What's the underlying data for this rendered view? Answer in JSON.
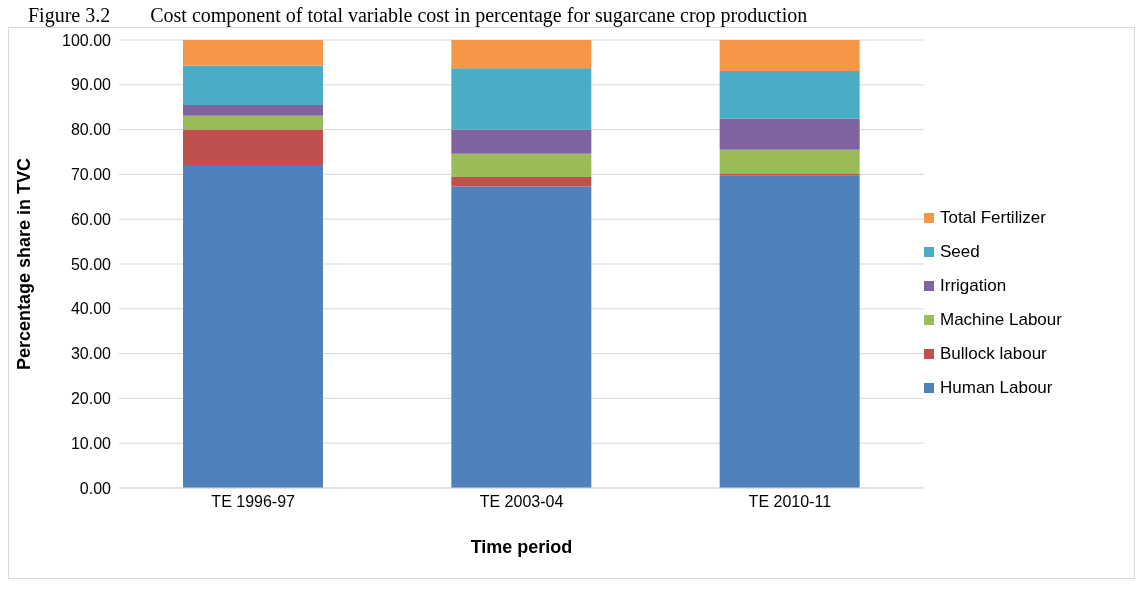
{
  "chart_data": {
    "type": "bar",
    "title": "Figure 3.2        Cost component of total variable cost in percentage for sugarcane crop production",
    "xlabel": "Time period",
    "ylabel": "Percentage share in TVC",
    "categories": [
      "TE 1996-97",
      "TE 2003-04",
      "TE 2010-11"
    ],
    "stacked": true,
    "series": [
      {
        "name": "Human Labour",
        "color": "#4f81bd",
        "values": [
          72.1,
          67.3,
          69.7
        ]
      },
      {
        "name": "Bullock labour",
        "color": "#c0504d",
        "values": [
          7.9,
          2.1,
          0.4
        ]
      },
      {
        "name": "Machine Labour",
        "color": "#9bbb59",
        "values": [
          3.1,
          5.2,
          5.4
        ]
      },
      {
        "name": "Irrigation",
        "color": "#8064a2",
        "values": [
          2.4,
          5.4,
          6.9
        ]
      },
      {
        "name": "Seed",
        "color": "#4bacc6",
        "values": [
          8.8,
          13.7,
          10.7
        ]
      },
      {
        "name": "Total Fertilizer",
        "color": "#f79646",
        "values": [
          5.7,
          6.3,
          6.9
        ]
      }
    ],
    "ylim": [
      0,
      100
    ],
    "yticks": [
      {
        "value": 0,
        "label": "0.00"
      },
      {
        "value": 10,
        "label": "10.00"
      },
      {
        "value": 20,
        "label": "20.00"
      },
      {
        "value": 30,
        "label": "30.00"
      },
      {
        "value": 40,
        "label": "40.00"
      },
      {
        "value": 50,
        "label": "50.00"
      },
      {
        "value": 60,
        "label": "60.00"
      },
      {
        "value": 70,
        "label": "70.00"
      },
      {
        "value": 80,
        "label": "80.00"
      },
      {
        "value": 90,
        "label": "90.00"
      },
      {
        "value": 100,
        "label": "100.00"
      }
    ],
    "grid": "y",
    "legend": "right"
  }
}
